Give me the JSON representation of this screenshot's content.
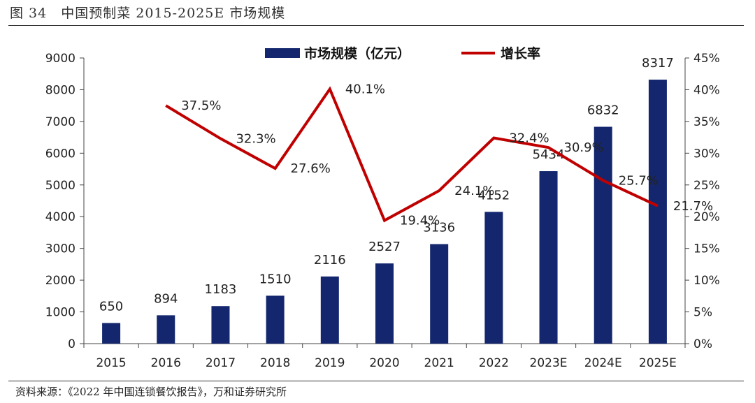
{
  "figure": {
    "title": "图 34　中国预制菜 2015-2025E 市场规模",
    "source": "资料来源：《2022 年中国连锁餐饮报告》，万和证券研究所"
  },
  "chart_data": {
    "type": "bar",
    "title": "中国预制菜 2015-2025E 市场规模",
    "categories": [
      "2015",
      "2016",
      "2017",
      "2018",
      "2019",
      "2020",
      "2021",
      "2022",
      "2023E",
      "2024E",
      "2025E"
    ],
    "series": [
      {
        "name": "市场规模（亿元）",
        "type": "bar",
        "axis": "left",
        "color": "#14276e",
        "values": [
          650,
          894,
          1183,
          1510,
          2116,
          2527,
          3136,
          4152,
          5434,
          6832,
          8317
        ],
        "labels": [
          "650",
          "894",
          "1183",
          "1510",
          "2116",
          "2527",
          "3136",
          "4152",
          "5434",
          "6832",
          "8317"
        ]
      },
      {
        "name": "增长率",
        "type": "line",
        "axis": "right",
        "color": "#c00000",
        "values": [
          null,
          37.5,
          32.3,
          27.6,
          40.1,
          19.4,
          24.1,
          32.4,
          30.9,
          25.7,
          21.7
        ],
        "labels": [
          "",
          "37.5%",
          "32.3%",
          "27.6%",
          "40.1%",
          "19.4%",
          "24.1%",
          "32.4%",
          "30.9%",
          "25.7%",
          "21.7%"
        ]
      }
    ],
    "y_left": {
      "ylim": [
        0,
        9000
      ],
      "ticks": [
        0,
        1000,
        2000,
        3000,
        4000,
        5000,
        6000,
        7000,
        8000,
        9000
      ],
      "tick_labels": [
        "0",
        "1000",
        "2000",
        "3000",
        "4000",
        "5000",
        "6000",
        "7000",
        "8000",
        "9000"
      ]
    },
    "y_right": {
      "ylim": [
        0,
        45
      ],
      "ticks": [
        0,
        5,
        10,
        15,
        20,
        25,
        30,
        35,
        40,
        45
      ],
      "tick_labels": [
        "0%",
        "5%",
        "10%",
        "15%",
        "20%",
        "25%",
        "30%",
        "35%",
        "40%",
        "45%"
      ]
    },
    "grid": false,
    "legend": {
      "position": "top",
      "entries": [
        "市场规模（亿元）",
        "增长率"
      ]
    }
  }
}
